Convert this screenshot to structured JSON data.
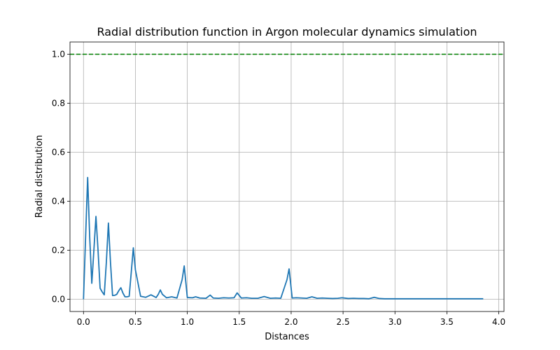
{
  "chart_data": {
    "type": "line",
    "title": "Radial distribution function in Argon molecular dynamics simulation",
    "xlabel": "Distances",
    "ylabel": "Radial distribution",
    "xlim": [
      -0.13,
      4.05
    ],
    "ylim": [
      -0.05,
      1.05
    ],
    "xticks": [
      0.0,
      0.5,
      1.0,
      1.5,
      2.0,
      2.5,
      3.0,
      3.5,
      4.0
    ],
    "xtick_labels": [
      "0.0",
      "0.5",
      "1.0",
      "1.5",
      "2.0",
      "2.5",
      "3.0",
      "3.5",
      "4.0"
    ],
    "yticks": [
      0.0,
      0.2,
      0.4,
      0.6,
      0.8,
      1.0
    ],
    "ytick_labels": [
      "0.0",
      "0.2",
      "0.4",
      "0.6",
      "0.8",
      "1.0"
    ],
    "grid": true,
    "series": [
      {
        "color": "#1f77b4",
        "style": "solid",
        "x": [
          0.0,
          0.02,
          0.04,
          0.06,
          0.08,
          0.1,
          0.12,
          0.14,
          0.16,
          0.18,
          0.2,
          0.22,
          0.24,
          0.26,
          0.28,
          0.3,
          0.32,
          0.34,
          0.36,
          0.38,
          0.4,
          0.42,
          0.44,
          0.46,
          0.48,
          0.5,
          0.55,
          0.6,
          0.65,
          0.7,
          0.72,
          0.74,
          0.76,
          0.8,
          0.85,
          0.9,
          0.95,
          0.97,
          1.0,
          1.05,
          1.08,
          1.12,
          1.18,
          1.22,
          1.25,
          1.3,
          1.35,
          1.4,
          1.45,
          1.48,
          1.52,
          1.57,
          1.62,
          1.68,
          1.74,
          1.8,
          1.85,
          1.9,
          1.96,
          1.98,
          2.01,
          2.05,
          2.1,
          2.15,
          2.2,
          2.25,
          2.3,
          2.35,
          2.4,
          2.45,
          2.49,
          2.55,
          2.6,
          2.65,
          2.7,
          2.75,
          2.8,
          2.85,
          2.9,
          3.0,
          3.1,
          3.2,
          3.3,
          3.4,
          3.5,
          3.6,
          3.7,
          3.85
        ],
        "y": [
          0.0,
          0.25,
          0.497,
          0.25,
          0.065,
          0.2,
          0.338,
          0.2,
          0.045,
          0.03,
          0.018,
          0.15,
          0.311,
          0.15,
          0.015,
          0.016,
          0.02,
          0.035,
          0.047,
          0.025,
          0.01,
          0.01,
          0.012,
          0.11,
          0.21,
          0.12,
          0.012,
          0.008,
          0.018,
          0.007,
          0.02,
          0.038,
          0.02,
          0.006,
          0.01,
          0.005,
          0.08,
          0.136,
          0.007,
          0.006,
          0.01,
          0.005,
          0.004,
          0.017,
          0.005,
          0.004,
          0.006,
          0.005,
          0.006,
          0.026,
          0.005,
          0.006,
          0.004,
          0.004,
          0.011,
          0.004,
          0.005,
          0.004,
          0.08,
          0.124,
          0.005,
          0.006,
          0.005,
          0.004,
          0.01,
          0.004,
          0.005,
          0.004,
          0.003,
          0.004,
          0.006,
          0.003,
          0.004,
          0.003,
          0.003,
          0.002,
          0.008,
          0.003,
          0.002,
          0.002,
          0.002,
          0.002,
          0.002,
          0.002,
          0.002,
          0.002,
          0.002,
          0.002
        ]
      },
      {
        "color": "#008000",
        "style": "dashed",
        "x": [
          -0.13,
          4.05
        ],
        "y": [
          1.0,
          1.0
        ]
      }
    ]
  }
}
